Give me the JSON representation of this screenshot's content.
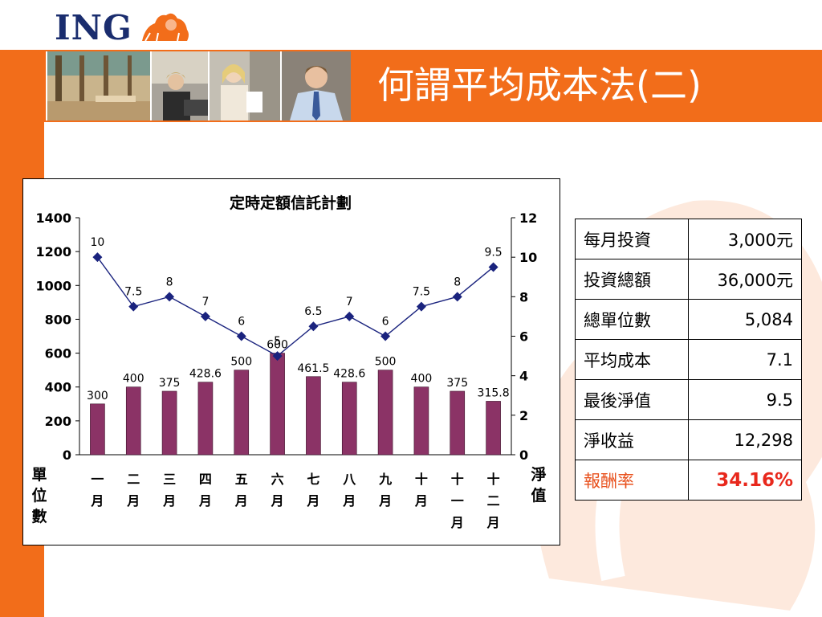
{
  "slide": {
    "title": "何謂平均成本法(二)"
  },
  "logo": {
    "text": "ING"
  },
  "colors": {
    "orange": "#f26d1a",
    "navy": "#1a2d6e",
    "bar": "#8b3366",
    "line": "#1a237e",
    "highlight": "#e8281c"
  },
  "table": {
    "rows": [
      {
        "label": "每月投資",
        "value": "3,000元"
      },
      {
        "label": "投資總額",
        "value": "36,000元"
      },
      {
        "label": "總單位數",
        "value": "5,084"
      },
      {
        "label": "平均成本",
        "value": "7.1"
      },
      {
        "label": "最後淨值",
        "value": "9.5"
      },
      {
        "label": "淨收益",
        "value": "12,298"
      },
      {
        "label": "報酬率",
        "value": "34.16%"
      }
    ]
  },
  "chart_data": {
    "type": "bar",
    "title": "定時定額信託計劃",
    "categories": [
      "一月",
      "二月",
      "三月",
      "四月",
      "五月",
      "六月",
      "七月",
      "八月",
      "九月",
      "十月",
      "十一月",
      "十二月"
    ],
    "category_chars": [
      [
        "一",
        "月"
      ],
      [
        "二",
        "月"
      ],
      [
        "三",
        "月"
      ],
      [
        "四",
        "月"
      ],
      [
        "五",
        "月"
      ],
      [
        "六",
        "月"
      ],
      [
        "七",
        "月"
      ],
      [
        "八",
        "月"
      ],
      [
        "九",
        "月"
      ],
      [
        "十",
        "月"
      ],
      [
        "十",
        "一",
        "月"
      ],
      [
        "十",
        "二",
        "月"
      ]
    ],
    "ylabel": "單位數",
    "y2label": "淨值",
    "ylim": [
      0,
      1400
    ],
    "y2lim": [
      0,
      12
    ],
    "yticks": [
      "0",
      "200",
      "400",
      "600",
      "800",
      "1000",
      "1200",
      "1400"
    ],
    "y2ticks": [
      "0",
      "2",
      "4",
      "6",
      "8",
      "10",
      "12"
    ],
    "series": [
      {
        "values": [
          300,
          400,
          375,
          428.6,
          500,
          600,
          461.5,
          428.6,
          500,
          400,
          375,
          315.8
        ],
        "labels": [
          "300",
          "400",
          "375",
          "428.6",
          "500",
          "600",
          "461.5",
          "428.6",
          "500",
          "400",
          "375",
          "315.8"
        ],
        "axis": "left",
        "kind": "bar"
      },
      {
        "values": [
          10,
          7.5,
          8,
          7,
          6,
          5,
          6.5,
          7,
          6,
          7.5,
          8,
          9.5
        ],
        "labels": [
          "10",
          "7.5",
          "8",
          "7",
          "6",
          "5",
          "6.5",
          "7",
          "6",
          "7.5",
          "8",
          "9.5"
        ],
        "axis": "right",
        "kind": "line"
      }
    ]
  }
}
